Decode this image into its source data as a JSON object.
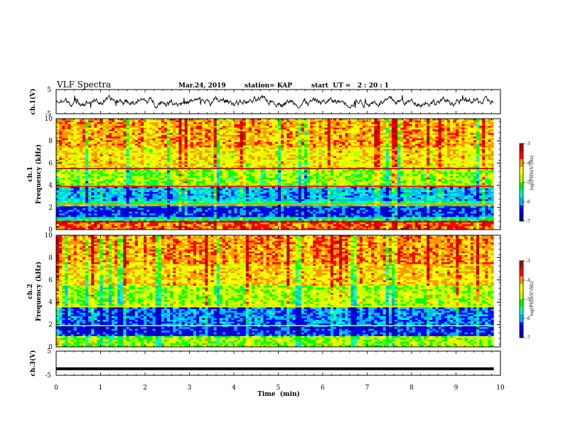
{
  "header": {
    "title": "VLF Spectra",
    "date": "Mar.24, 2019",
    "station": "station= KAP",
    "start": "start  UT =   2 : 20 : 1"
  },
  "chart_data": [
    {
      "type": "line",
      "name": "ch1-waveform",
      "ylabel": "ch.1(V)",
      "ylim": [
        -5,
        5
      ],
      "yticks": [
        "5",
        "-5"
      ],
      "xlim": [
        0,
        10
      ],
      "x_end": 9.85
    },
    {
      "type": "heatmap",
      "name": "ch1-spectrogram",
      "ylabel": "ch.1\nFrequency (kHz)",
      "ylabel_lines": [
        "ch.1",
        "Frequency (kHz)"
      ],
      "ylim": [
        0,
        10
      ],
      "yticks": [
        "0",
        "2",
        "4",
        "6",
        "8",
        "10"
      ],
      "xlim": [
        0,
        10
      ],
      "x_end": 9.85,
      "colorbar": {
        "label": "log(PSD)(V²/Hz)",
        "range": [
          -7,
          -3
        ],
        "ticks": [
          "-3",
          "-4",
          "-5",
          "-6",
          "-7"
        ]
      },
      "bands": [
        {
          "from": 0,
          "to": 0.8,
          "level": -3.8
        },
        {
          "from": 0.8,
          "to": 1.1,
          "level": -5.5
        },
        {
          "from": 1.1,
          "to": 2.1,
          "level": -6.4
        },
        {
          "from": 2.1,
          "to": 2.6,
          "level": -5.4
        },
        {
          "from": 2.6,
          "to": 3.9,
          "level": -5.9
        },
        {
          "from": 3.9,
          "to": 5.6,
          "level": -4.9
        },
        {
          "from": 5.6,
          "to": 7.5,
          "level": -4.4
        },
        {
          "from": 7.5,
          "to": 10,
          "level": -4.1
        }
      ],
      "lines": [
        {
          "f": 5.5,
          "level": -3.3
        },
        {
          "f": 3.9,
          "level": -3.5
        },
        {
          "f": 2.3,
          "level": -4.2
        },
        {
          "f": 0.7,
          "level": -3.2
        }
      ]
    },
    {
      "type": "heatmap",
      "name": "ch2-spectrogram",
      "ylabel": "ch.2\nFrequency (kHz)",
      "ylabel_lines": [
        "ch.2",
        "Frequency (kHz)"
      ],
      "ylim": [
        0,
        10
      ],
      "yticks": [
        "0",
        "2",
        "4",
        "6",
        "8",
        "10"
      ],
      "xlim": [
        0,
        10
      ],
      "x_end": 9.85,
      "colorbar": {
        "label": "log(PSD)(V²/Hz)",
        "range": [
          -7,
          -3
        ],
        "ticks": [
          "-3",
          "-4",
          "-5",
          "-6",
          "-7"
        ]
      },
      "bands": [
        {
          "from": 0,
          "to": 0.9,
          "level": -4.9
        },
        {
          "from": 0.9,
          "to": 2.0,
          "level": -6.4
        },
        {
          "from": 2.0,
          "to": 3.5,
          "level": -6.1
        },
        {
          "from": 3.5,
          "to": 5.5,
          "level": -4.8
        },
        {
          "from": 5.5,
          "to": 7.5,
          "level": -4.3
        },
        {
          "from": 7.5,
          "to": 10,
          "level": -4.0
        }
      ],
      "lines": [
        {
          "f": 3.6,
          "level": -4.6
        },
        {
          "f": 1.9,
          "level": -4.8
        }
      ]
    },
    {
      "type": "line",
      "name": "ch3-waveform",
      "ylabel": "ch.3(V)",
      "ylim": [
        -5,
        5
      ],
      "yticks": [
        "5",
        "-5"
      ],
      "xlim": [
        0,
        10
      ],
      "x_end": 9.85,
      "value": -2.3
    }
  ],
  "x_axis": {
    "label": "Time  (min)",
    "ticks": [
      "0",
      "1",
      "2",
      "3",
      "4",
      "5",
      "6",
      "7",
      "8",
      "9",
      "10"
    ]
  },
  "colorscale": [
    "#0000b0",
    "#0000ff",
    "#00b4ff",
    "#00ffc8",
    "#00ff00",
    "#c8ff00",
    "#ffff00",
    "#ff9600",
    "#ff0000",
    "#b40000"
  ]
}
